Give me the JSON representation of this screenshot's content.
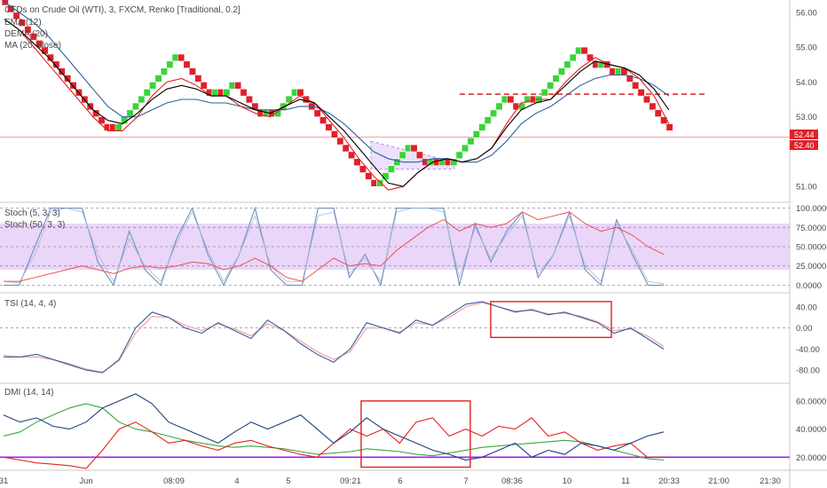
{
  "chart_data": {
    "type": "line",
    "title": "CFDs on Crude Oil (WTI), 3, FXCM, Renko [Traditional, 0.2]",
    "x_ticks": [
      "31",
      "Jun",
      "08:09",
      "4",
      "5",
      "09:21",
      "6",
      "7",
      "08:36",
      "10",
      "11",
      "20:33",
      "21:00",
      "21:30"
    ],
    "last_price_labels": [
      "52.44",
      "52.40"
    ],
    "panels": [
      {
        "id": "price",
        "overlays": [
          "EMA (12)",
          "DEMA (20)",
          "MA (20, close)"
        ],
        "y_ticks": [
          "56.00",
          "55.00",
          "54.00",
          "53.00",
          "51.00"
        ],
        "ylim": [
          50.7,
          56.2
        ],
        "bricks_close": [
          56.2,
          56.0,
          55.8,
          55.6,
          55.4,
          55.2,
          55.0,
          54.8,
          54.6,
          54.4,
          54.2,
          54.0,
          53.8,
          53.6,
          53.4,
          53.2,
          53.0,
          52.8,
          52.6,
          52.6,
          52.8,
          53.0,
          53.2,
          53.4,
          53.6,
          53.8,
          54.0,
          54.2,
          54.4,
          54.6,
          54.8,
          54.6,
          54.4,
          54.2,
          54.0,
          53.8,
          53.6,
          53.8,
          53.6,
          53.8,
          54.0,
          53.8,
          53.6,
          53.4,
          53.2,
          53.0,
          53.2,
          53.0,
          53.2,
          53.4,
          53.6,
          53.8,
          53.6,
          53.4,
          53.2,
          53.0,
          52.8,
          52.6,
          52.4,
          52.2,
          52.0,
          51.8,
          51.6,
          51.4,
          51.2,
          51.0,
          51.2,
          51.4,
          51.6,
          51.8,
          52.0,
          52.2,
          52.0,
          51.8,
          51.6,
          51.8,
          51.6,
          51.8,
          51.6,
          51.8,
          52.0,
          52.2,
          52.4,
          52.6,
          52.8,
          53.0,
          53.2,
          53.4,
          53.6,
          53.4,
          53.2,
          53.4,
          53.6,
          53.4,
          53.6,
          53.8,
          54.0,
          54.2,
          54.4,
          54.6,
          54.8,
          55.0,
          54.8,
          54.6,
          54.4,
          54.6,
          54.4,
          54.2,
          54.4,
          54.2,
          54.0,
          53.8,
          53.6,
          53.4,
          53.2,
          53.0,
          52.8,
          52.6
        ],
        "ema_12": [
          55.8,
          55.5,
          55.1,
          54.7,
          54.2,
          53.7,
          53.2,
          52.9,
          52.8,
          53.1,
          53.5,
          53.8,
          53.9,
          53.8,
          53.6,
          53.6,
          53.4,
          53.2,
          53.1,
          53.3,
          53.5,
          53.4,
          53.0,
          52.6,
          52.1,
          51.6,
          51.1,
          51.0,
          51.4,
          51.7,
          51.8,
          51.7,
          51.8,
          52.1,
          52.7,
          53.2,
          53.4,
          53.5,
          53.9,
          54.3,
          54.6,
          54.5,
          54.4,
          54.2,
          53.8,
          53.2
        ],
        "dema_20": [
          55.8,
          55.5,
          55.0,
          54.5,
          54.0,
          53.5,
          53.0,
          52.6,
          52.6,
          53.0,
          53.6,
          54.0,
          54.1,
          53.9,
          53.6,
          53.6,
          53.3,
          53.1,
          53.0,
          53.3,
          53.6,
          53.4,
          52.9,
          52.4,
          51.8,
          51.3,
          50.9,
          51.0,
          51.4,
          51.7,
          51.8,
          51.7,
          51.8,
          52.1,
          52.8,
          53.4,
          53.5,
          53.5,
          54.0,
          54.4,
          54.7,
          54.5,
          54.4,
          54.1,
          53.6,
          52.8
        ],
        "ma_20": [
          56.3,
          56.0,
          55.7,
          55.3,
          54.8,
          54.3,
          53.8,
          53.3,
          53.0,
          53.0,
          53.2,
          53.4,
          53.5,
          53.5,
          53.4,
          53.4,
          53.3,
          53.2,
          53.2,
          53.2,
          53.3,
          53.3,
          53.1,
          52.8,
          52.4,
          52.0,
          51.8,
          51.7,
          51.7,
          51.8,
          51.8,
          51.7,
          51.7,
          51.9,
          52.3,
          52.8,
          53.1,
          53.3,
          53.6,
          53.9,
          54.1,
          54.2,
          54.2,
          54.1,
          53.9,
          53.6
        ]
      },
      {
        "id": "stoch",
        "legend": [
          "Stoch (5, 3, 3)",
          "Stoch (50, 3, 3)"
        ],
        "y_ticks": [
          "100.0000",
          "75.0000",
          "50.0000",
          "25.0000",
          "0.0000"
        ],
        "ylim": [
          -3,
          103
        ],
        "band": [
          20,
          80
        ],
        "stoch_fast": [
          0,
          0,
          50,
          100,
          100,
          100,
          30,
          0,
          70,
          20,
          0,
          60,
          100,
          40,
          0,
          40,
          100,
          20,
          0,
          0,
          100,
          100,
          10,
          40,
          0,
          100,
          100,
          100,
          100,
          0,
          80,
          30,
          70,
          95,
          10,
          40,
          95,
          20,
          0,
          85,
          40,
          0,
          0
        ],
        "stoch_fast_signal": [
          5,
          3,
          40,
          95,
          100,
          95,
          40,
          5,
          60,
          25,
          5,
          55,
          95,
          45,
          5,
          40,
          90,
          25,
          5,
          5,
          90,
          95,
          15,
          35,
          5,
          95,
          100,
          100,
          95,
          10,
          75,
          35,
          65,
          90,
          15,
          40,
          90,
          25,
          5,
          80,
          45,
          5,
          2
        ],
        "stoch_slow": [
          5,
          5,
          10,
          15,
          20,
          25,
          20,
          15,
          22,
          25,
          22,
          25,
          30,
          28,
          20,
          25,
          35,
          25,
          10,
          5,
          20,
          35,
          25,
          28,
          25,
          45,
          60,
          75,
          85,
          70,
          80,
          75,
          80,
          95,
          85,
          90,
          95,
          80,
          70,
          75,
          65,
          50,
          40
        ]
      },
      {
        "id": "tsi",
        "legend": [
          "TSI (14, 4, 4)"
        ],
        "y_ticks": [
          "40.00",
          "0.00",
          "-40.00",
          "-80.00"
        ],
        "ylim": [
          -95,
          60
        ],
        "tsi": [
          -55,
          -55,
          -50,
          -60,
          -70,
          -80,
          -85,
          -60,
          0,
          30,
          20,
          0,
          -10,
          10,
          -5,
          -20,
          15,
          -5,
          -30,
          -50,
          -65,
          -40,
          10,
          0,
          -10,
          15,
          5,
          25,
          45,
          50,
          40,
          30,
          35,
          25,
          30,
          20,
          10,
          -10,
          0,
          -20,
          -40
        ],
        "tsi_signal": [
          -52,
          -55,
          -55,
          -60,
          -68,
          -78,
          -84,
          -62,
          -10,
          22,
          20,
          5,
          -5,
          8,
          -2,
          -15,
          8,
          -5,
          -25,
          -45,
          -60,
          -45,
          0,
          0,
          -8,
          10,
          5,
          20,
          40,
          48,
          40,
          32,
          33,
          27,
          28,
          22,
          12,
          -5,
          -2,
          -15,
          -35
        ]
      },
      {
        "id": "dmi",
        "legend": [
          "DMI (14, 14)"
        ],
        "y_ticks": [
          "60.0000",
          "40.0000",
          "20.0000"
        ],
        "ylim": [
          12,
          70
        ],
        "di_plus": [
          50,
          45,
          48,
          42,
          40,
          45,
          55,
          60,
          65,
          58,
          45,
          40,
          35,
          30,
          38,
          45,
          40,
          45,
          50,
          40,
          30,
          38,
          48,
          40,
          35,
          30,
          25,
          22,
          18,
          20,
          25,
          30,
          20,
          25,
          22,
          30,
          28,
          25,
          30,
          35,
          38
        ],
        "di_minus": [
          20,
          18,
          16,
          15,
          14,
          12,
          25,
          40,
          45,
          38,
          30,
          32,
          28,
          25,
          30,
          32,
          28,
          25,
          22,
          20,
          30,
          40,
          35,
          40,
          30,
          45,
          48,
          35,
          40,
          35,
          42,
          40,
          48,
          35,
          38,
          30,
          25,
          28,
          30,
          20,
          20
        ],
        "adx": [
          35,
          38,
          45,
          50,
          55,
          58,
          55,
          45,
          40,
          38,
          35,
          32,
          30,
          28,
          27,
          28,
          27,
          26,
          24,
          22,
          23,
          24,
          26,
          25,
          24,
          22,
          21,
          23,
          25,
          27,
          28,
          29,
          30,
          31,
          32,
          31,
          28,
          25,
          22,
          19,
          18
        ],
        "threshold": 20
      }
    ],
    "annotations": [
      {
        "type": "hline-dashed",
        "panel": "price",
        "value": 53.65
      },
      {
        "type": "hline",
        "panel": "price",
        "value": 52.42
      },
      {
        "type": "rect",
        "panel": "tsi"
      },
      {
        "type": "rect",
        "panel": "dmi"
      },
      {
        "type": "channel-shaded",
        "panel": "price"
      }
    ]
  },
  "colors": {
    "up_brick": "#3ad33a",
    "down_brick": "#e0202a",
    "ema": "#000000",
    "dema": "#e02020",
    "ma": "#2c5f9e",
    "stoch_band": "#e1c8f7",
    "stoch_fast": "#6f8fbf",
    "stoch_slow": "#f05050",
    "tsi": "#3b5ba0",
    "tsi_signal": "#f29b9b",
    "di_plus": "#1f3f82",
    "di_minus": "#e82020",
    "adx": "#3aa640",
    "threshold": "#a020f0",
    "annotation_red": "#e02020",
    "annotation_purple": "#b48ae8"
  }
}
